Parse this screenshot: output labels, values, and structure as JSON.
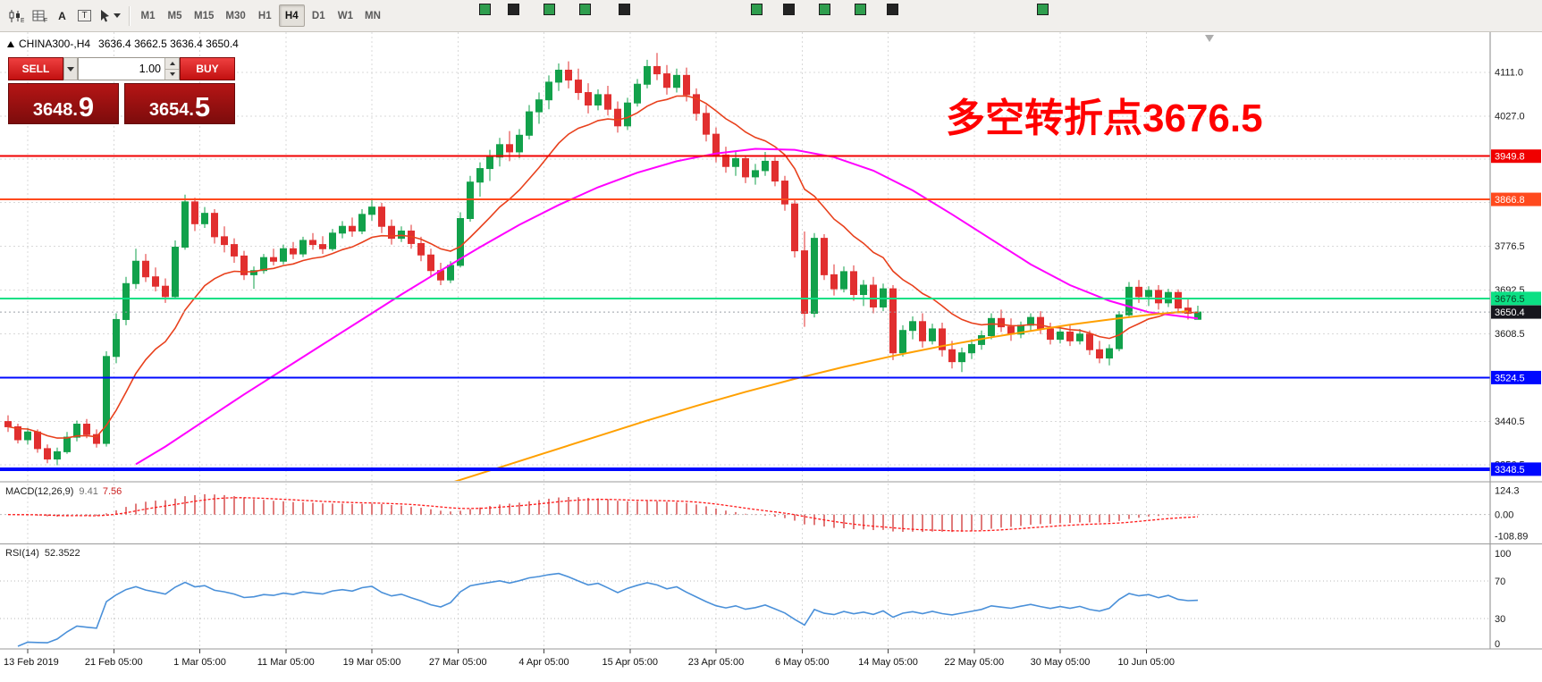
{
  "toolbar": {
    "a_label": "A",
    "t_label": "T",
    "timeframes": [
      "M1",
      "M5",
      "M15",
      "M30",
      "H1",
      "H4",
      "D1",
      "W1",
      "MN"
    ],
    "active_timeframe": "H4",
    "squares": [
      [
        536,
        "#2f9e4e"
      ],
      [
        568,
        "#232323"
      ],
      [
        608,
        "#2f9e4e"
      ],
      [
        648,
        "#2f9e4e"
      ],
      [
        692,
        "#232323"
      ],
      [
        840,
        "#2f9e4e"
      ],
      [
        876,
        "#232323"
      ],
      [
        916,
        "#2f9e4e"
      ],
      [
        956,
        "#2f9e4e"
      ],
      [
        992,
        "#232323"
      ],
      [
        1160,
        "#2f9e4e"
      ]
    ]
  },
  "chart": {
    "symbol": "CHINA300-,H4",
    "ohlc": "3636.4 3662.5 3636.4 3650.4",
    "annotation": {
      "text": "多空转折点3676.5",
      "color": "#ff0000"
    },
    "trade_panel": {
      "sell_label": "SELL",
      "buy_label": "BUY",
      "volume": "1.00",
      "sell_price": "3648.",
      "sell_price_big": "9",
      "buy_price": "3654.",
      "buy_price_big": "5"
    }
  },
  "chart_data": {
    "type": "candlestick",
    "title": "CHINA300- H4",
    "ylim": [
      3326,
      4188
    ],
    "up_color": "#12a14b",
    "down_color": "#e12f2f",
    "grid_prices": [
      3356.5,
      3440.5,
      3524.5,
      3608.5,
      3692.5,
      3776.5,
      3860.5,
      3944.5,
      4027.0,
      4111.0
    ],
    "axis_ticks": [
      {
        "v": 4111.0,
        "t": "4111.0"
      },
      {
        "v": 4027.0,
        "t": "4027.0"
      },
      {
        "v": 3776.5,
        "t": "3776.5"
      },
      {
        "v": 3692.5,
        "t": "3692.5"
      },
      {
        "v": 3608.5,
        "t": "3608.5"
      },
      {
        "v": 3440.5,
        "t": "3440.5"
      },
      {
        "v": 3356.5,
        "t": "3356.5"
      }
    ],
    "badges": [
      {
        "v": 3949.8,
        "t": "3949.8",
        "bg": "#f00000",
        "fg": "#ffffff"
      },
      {
        "v": 3866.8,
        "t": "3866.8",
        "bg": "#ff4a1e",
        "fg": "#ffffff"
      },
      {
        "v": 3676.5,
        "t": "3676.5",
        "bg": "#0be084",
        "fg": "#0b3b22"
      },
      {
        "v": 3650.4,
        "t": "3650.4",
        "bg": "#16161d",
        "fg": "#ffffff"
      },
      {
        "v": 3524.5,
        "t": "3524.5",
        "bg": "#0008ff",
        "fg": "#ffffff"
      },
      {
        "v": 3348.5,
        "t": "3348.5",
        "bg": "#0008ff",
        "fg": "#ffffff"
      }
    ],
    "hlines": [
      {
        "v": 3949.8,
        "c": "#f00000",
        "w": 2
      },
      {
        "v": 3866.8,
        "c": "#ff4a1e",
        "w": 2
      },
      {
        "v": 3676.5,
        "c": "#0be084",
        "w": 2
      },
      {
        "v": 3524.5,
        "c": "#0008ff",
        "w": 2
      },
      {
        "v": 3348.5,
        "c": "#0008ff",
        "w": 4
      }
    ],
    "bid": {
      "v": 3650.4
    },
    "x_labels": [
      [
        2,
        "13 Feb 2019"
      ],
      [
        10.75,
        "21 Feb 05:00"
      ],
      [
        19.5,
        "1 Mar 05:00"
      ],
      [
        28.25,
        "11 Mar 05:00"
      ],
      [
        37,
        "19 Mar 05:00"
      ],
      [
        45.75,
        "27 Mar 05:00"
      ],
      [
        54.5,
        "4 Apr 05:00"
      ],
      [
        63.25,
        "15 Apr 05:00"
      ],
      [
        72,
        "23 Apr 05:00"
      ],
      [
        80.75,
        "6 May 05:00"
      ],
      [
        89.5,
        "14 May 05:00"
      ],
      [
        98.25,
        "22 May 05:00"
      ],
      [
        107,
        "30 May 05:00"
      ],
      [
        115.75,
        "10 Jun 05:00"
      ]
    ],
    "ma_lines": [
      {
        "name": "ma-fast-red",
        "type": "ema",
        "period": 13,
        "color": "#e8401c",
        "width": 1.6
      },
      {
        "name": "ma-mid-magenta",
        "type": "points",
        "color": "#ff00ff",
        "width": 2,
        "points": [
          [
            13,
            3358
          ],
          [
            16,
            3392
          ],
          [
            20,
            3442
          ],
          [
            24,
            3492
          ],
          [
            28,
            3540
          ],
          [
            32,
            3588
          ],
          [
            36,
            3636
          ],
          [
            40,
            3684
          ],
          [
            44,
            3730
          ],
          [
            48,
            3775
          ],
          [
            52,
            3818
          ],
          [
            56,
            3856
          ],
          [
            60,
            3890
          ],
          [
            64,
            3918
          ],
          [
            68,
            3940
          ],
          [
            72,
            3955
          ],
          [
            76,
            3964
          ],
          [
            80,
            3962
          ],
          [
            84,
            3948
          ],
          [
            88,
            3922
          ],
          [
            92,
            3884
          ],
          [
            96,
            3838
          ],
          [
            100,
            3790
          ],
          [
            104,
            3742
          ],
          [
            108,
            3702
          ],
          [
            112,
            3672
          ],
          [
            116,
            3650
          ],
          [
            121,
            3638
          ]
        ]
      },
      {
        "name": "ma-slow-orange",
        "type": "points",
        "color": "#ffa000",
        "width": 2,
        "points": [
          [
            45,
            3322
          ],
          [
            50,
            3352
          ],
          [
            55,
            3382
          ],
          [
            60,
            3412
          ],
          [
            65,
            3442
          ],
          [
            70,
            3470
          ],
          [
            75,
            3497
          ],
          [
            80,
            3522
          ],
          [
            85,
            3545
          ],
          [
            90,
            3566
          ],
          [
            95,
            3585
          ],
          [
            100,
            3602
          ],
          [
            104,
            3614
          ],
          [
            108,
            3626
          ],
          [
            112,
            3636
          ],
          [
            116,
            3645
          ],
          [
            120,
            3652
          ]
        ]
      }
    ],
    "candles": [
      [
        3440,
        3452,
        3420,
        3430
      ],
      [
        3430,
        3436,
        3398,
        3405
      ],
      [
        3405,
        3428,
        3396,
        3420
      ],
      [
        3420,
        3425,
        3380,
        3388
      ],
      [
        3388,
        3396,
        3360,
        3368
      ],
      [
        3368,
        3390,
        3356,
        3382
      ],
      [
        3382,
        3420,
        3378,
        3410
      ],
      [
        3410,
        3442,
        3402,
        3435
      ],
      [
        3435,
        3445,
        3408,
        3415
      ],
      [
        3415,
        3425,
        3390,
        3398
      ],
      [
        3398,
        3575,
        3392,
        3565
      ],
      [
        3565,
        3648,
        3552,
        3636
      ],
      [
        3636,
        3718,
        3625,
        3705
      ],
      [
        3705,
        3772,
        3695,
        3748
      ],
      [
        3748,
        3762,
        3708,
        3718
      ],
      [
        3718,
        3736,
        3690,
        3700
      ],
      [
        3700,
        3715,
        3668,
        3680
      ],
      [
        3680,
        3788,
        3676,
        3775
      ],
      [
        3775,
        3876,
        3770,
        3862
      ],
      [
        3862,
        3870,
        3806,
        3820
      ],
      [
        3820,
        3852,
        3812,
        3840
      ],
      [
        3840,
        3848,
        3782,
        3795
      ],
      [
        3795,
        3815,
        3765,
        3780
      ],
      [
        3780,
        3792,
        3745,
        3758
      ],
      [
        3758,
        3768,
        3712,
        3722
      ],
      [
        3722,
        3738,
        3695,
        3730
      ],
      [
        3730,
        3762,
        3724,
        3755
      ],
      [
        3755,
        3772,
        3740,
        3748
      ],
      [
        3748,
        3780,
        3742,
        3772
      ],
      [
        3772,
        3785,
        3752,
        3762
      ],
      [
        3762,
        3795,
        3756,
        3788
      ],
      [
        3788,
        3802,
        3770,
        3780
      ],
      [
        3780,
        3796,
        3762,
        3772
      ],
      [
        3772,
        3810,
        3768,
        3802
      ],
      [
        3802,
        3825,
        3792,
        3815
      ],
      [
        3815,
        3832,
        3795,
        3806
      ],
      [
        3806,
        3848,
        3800,
        3838
      ],
      [
        3838,
        3868,
        3826,
        3852
      ],
      [
        3852,
        3860,
        3802,
        3815
      ],
      [
        3815,
        3828,
        3780,
        3792
      ],
      [
        3792,
        3815,
        3785,
        3806
      ],
      [
        3806,
        3818,
        3772,
        3782
      ],
      [
        3782,
        3795,
        3748,
        3760
      ],
      [
        3760,
        3772,
        3718,
        3730
      ],
      [
        3730,
        3745,
        3702,
        3712
      ],
      [
        3712,
        3748,
        3706,
        3740
      ],
      [
        3740,
        3842,
        3736,
        3830
      ],
      [
        3830,
        3912,
        3824,
        3900
      ],
      [
        3900,
        3938,
        3872,
        3926
      ],
      [
        3926,
        3962,
        3902,
        3948
      ],
      [
        3948,
        3985,
        3930,
        3972
      ],
      [
        3972,
        3998,
        3940,
        3958
      ],
      [
        3958,
        4002,
        3946,
        3990
      ],
      [
        3990,
        4048,
        3982,
        4035
      ],
      [
        4035,
        4072,
        4012,
        4058
      ],
      [
        4058,
        4105,
        4040,
        4092
      ],
      [
        4092,
        4128,
        4075,
        4115
      ],
      [
        4115,
        4132,
        4080,
        4096
      ],
      [
        4096,
        4118,
        4058,
        4072
      ],
      [
        4072,
        4090,
        4032,
        4048
      ],
      [
        4048,
        4078,
        4038,
        4068
      ],
      [
        4068,
        4085,
        4028,
        4040
      ],
      [
        4040,
        4055,
        3995,
        4008
      ],
      [
        4008,
        4062,
        4000,
        4052
      ],
      [
        4052,
        4098,
        4045,
        4088
      ],
      [
        4088,
        4135,
        4080,
        4122
      ],
      [
        4122,
        4148,
        4096,
        4108
      ],
      [
        4108,
        4125,
        4068,
        4082
      ],
      [
        4082,
        4118,
        4072,
        4105
      ],
      [
        4105,
        4120,
        4055,
        4068
      ],
      [
        4068,
        4080,
        4018,
        4032
      ],
      [
        4032,
        4048,
        3978,
        3992
      ],
      [
        3992,
        4005,
        3938,
        3952
      ],
      [
        3952,
        3968,
        3918,
        3930
      ],
      [
        3930,
        3958,
        3912,
        3945
      ],
      [
        3945,
        3952,
        3898,
        3910
      ],
      [
        3910,
        3935,
        3895,
        3922
      ],
      [
        3922,
        3958,
        3912,
        3940
      ],
      [
        3940,
        3948,
        3892,
        3902
      ],
      [
        3902,
        3912,
        3845,
        3858
      ],
      [
        3858,
        3865,
        3755,
        3768
      ],
      [
        3768,
        3805,
        3622,
        3648
      ],
      [
        3648,
        3802,
        3640,
        3792
      ],
      [
        3792,
        3800,
        3712,
        3722
      ],
      [
        3722,
        3742,
        3682,
        3695
      ],
      [
        3695,
        3738,
        3688,
        3728
      ],
      [
        3728,
        3740,
        3672,
        3684
      ],
      [
        3684,
        3712,
        3662,
        3702
      ],
      [
        3702,
        3718,
        3648,
        3660
      ],
      [
        3660,
        3705,
        3652,
        3695
      ],
      [
        3695,
        3702,
        3558,
        3572
      ],
      [
        3572,
        3625,
        3565,
        3615
      ],
      [
        3615,
        3642,
        3598,
        3632
      ],
      [
        3632,
        3648,
        3582,
        3595
      ],
      [
        3595,
        3628,
        3588,
        3618
      ],
      [
        3618,
        3630,
        3565,
        3578
      ],
      [
        3578,
        3595,
        3542,
        3555
      ],
      [
        3555,
        3582,
        3535,
        3572
      ],
      [
        3572,
        3598,
        3560,
        3588
      ],
      [
        3588,
        3615,
        3578,
        3605
      ],
      [
        3605,
        3648,
        3598,
        3638
      ],
      [
        3638,
        3655,
        3612,
        3622
      ],
      [
        3622,
        3638,
        3595,
        3608
      ],
      [
        3608,
        3632,
        3600,
        3625
      ],
      [
        3625,
        3648,
        3615,
        3640
      ],
      [
        3640,
        3652,
        3608,
        3618
      ],
      [
        3618,
        3630,
        3588,
        3598
      ],
      [
        3598,
        3622,
        3590,
        3612
      ],
      [
        3612,
        3625,
        3585,
        3595
      ],
      [
        3595,
        3618,
        3588,
        3608
      ],
      [
        3608,
        3615,
        3568,
        3578
      ],
      [
        3578,
        3595,
        3552,
        3562
      ],
      [
        3562,
        3588,
        3548,
        3580
      ],
      [
        3580,
        3652,
        3575,
        3645
      ],
      [
        3645,
        3708,
        3640,
        3698
      ],
      [
        3698,
        3712,
        3668,
        3680
      ],
      [
        3680,
        3700,
        3662,
        3692
      ],
      [
        3692,
        3702,
        3655,
        3668
      ],
      [
        3668,
        3695,
        3660,
        3688
      ],
      [
        3688,
        3694,
        3648,
        3658
      ],
      [
        3658,
        3675,
        3636,
        3648
      ],
      [
        3636.4,
        3662.5,
        3636.4,
        3650.4
      ]
    ],
    "macd": {
      "label": "MACD(12,26,9)",
      "value_hist": "9.41",
      "value_signal": "7.56",
      "ylim": [
        -140,
        160
      ],
      "axis": [
        {
          "v": 124.3,
          "t": "124.3"
        },
        {
          "v": 0,
          "t": "0.00"
        },
        {
          "v": -108.89,
          "t": "-108.89"
        }
      ],
      "hist_color": "#e07b7b",
      "signal_color": "#ff1a1a"
    },
    "rsi": {
      "label": "RSI(14)",
      "value": "52.3522",
      "color": "#4a90d9",
      "axis": [
        {
          "v": 100,
          "t": "100"
        },
        {
          "v": 70,
          "t": "70"
        },
        {
          "v": 30,
          "t": "30"
        },
        {
          "v": 0,
          "t": "0"
        }
      ],
      "dotted_levels": [
        70,
        30
      ]
    }
  }
}
